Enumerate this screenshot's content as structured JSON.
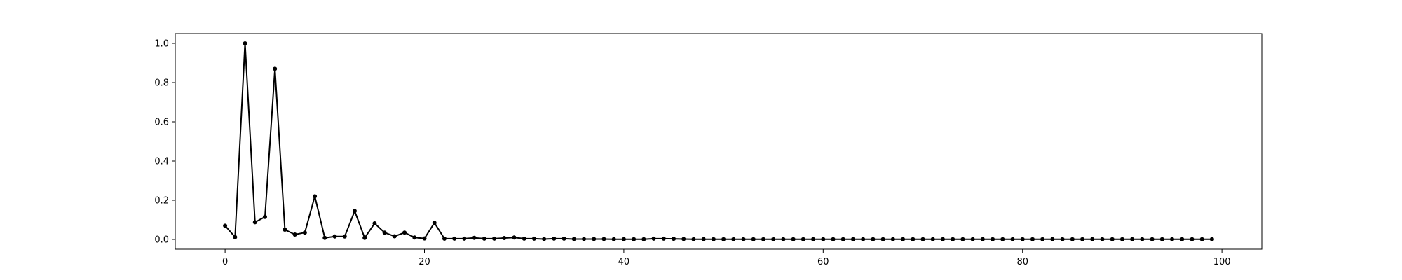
{
  "chart_data": {
    "type": "line",
    "title": "",
    "xlabel": "",
    "ylabel": "",
    "xlim": [
      -5,
      104
    ],
    "ylim": [
      -0.05,
      1.05
    ],
    "grid": false,
    "legend": "none",
    "x_ticks": [
      0,
      20,
      40,
      60,
      80,
      100
    ],
    "x_tick_labels": [
      "0",
      "20",
      "40",
      "60",
      "80",
      "100"
    ],
    "y_ticks": [
      0.0,
      0.2,
      0.4,
      0.6,
      0.8,
      1.0
    ],
    "y_tick_labels": [
      "0.0",
      "0.2",
      "0.4",
      "0.6",
      "0.8",
      "1.0"
    ],
    "series": [
      {
        "color": "#000000",
        "marker": "dot",
        "x": [
          0,
          1,
          2,
          3,
          4,
          5,
          6,
          7,
          8,
          9,
          10,
          11,
          12,
          13,
          14,
          15,
          16,
          17,
          18,
          19,
          20,
          21,
          22,
          23,
          24,
          25,
          26,
          27,
          28,
          29,
          30,
          31,
          32,
          33,
          34,
          35,
          36,
          37,
          38,
          39,
          40,
          41,
          42,
          43,
          44,
          45,
          46,
          47,
          48,
          49,
          50,
          51,
          52,
          53,
          54,
          55,
          56,
          57,
          58,
          59,
          60,
          61,
          62,
          63,
          64,
          65,
          66,
          67,
          68,
          69,
          70,
          71,
          72,
          73,
          74,
          75,
          76,
          77,
          78,
          79,
          80,
          81,
          82,
          83,
          84,
          85,
          86,
          87,
          88,
          89,
          90,
          91,
          92,
          93,
          94,
          95,
          96,
          97,
          98,
          99
        ],
        "y": [
          0.07,
          0.012,
          1.0,
          0.088,
          0.115,
          0.87,
          0.05,
          0.025,
          0.035,
          0.22,
          0.008,
          0.015,
          0.015,
          0.145,
          0.008,
          0.082,
          0.035,
          0.016,
          0.035,
          0.01,
          0.005,
          0.085,
          0.004,
          0.004,
          0.004,
          0.008,
          0.004,
          0.004,
          0.007,
          0.01,
          0.004,
          0.004,
          0.002,
          0.004,
          0.004,
          0.002,
          0.002,
          0.002,
          0.002,
          0.001,
          0.001,
          0.001,
          0.001,
          0.004,
          0.004,
          0.003,
          0.002,
          0.001,
          0.001,
          0.001,
          0.001,
          0.001,
          0.001,
          0.001,
          0.001,
          0.001,
          0.001,
          0.001,
          0.001,
          0.001,
          0.001,
          0.001,
          0.001,
          0.001,
          0.001,
          0.001,
          0.001,
          0.001,
          0.001,
          0.001,
          0.001,
          0.001,
          0.001,
          0.001,
          0.001,
          0.001,
          0.001,
          0.001,
          0.001,
          0.001,
          0.001,
          0.001,
          0.001,
          0.001,
          0.001,
          0.001,
          0.001,
          0.001,
          0.001,
          0.001,
          0.001,
          0.001,
          0.001,
          0.001,
          0.001,
          0.001,
          0.001,
          0.001,
          0.001,
          0.001
        ]
      }
    ]
  }
}
